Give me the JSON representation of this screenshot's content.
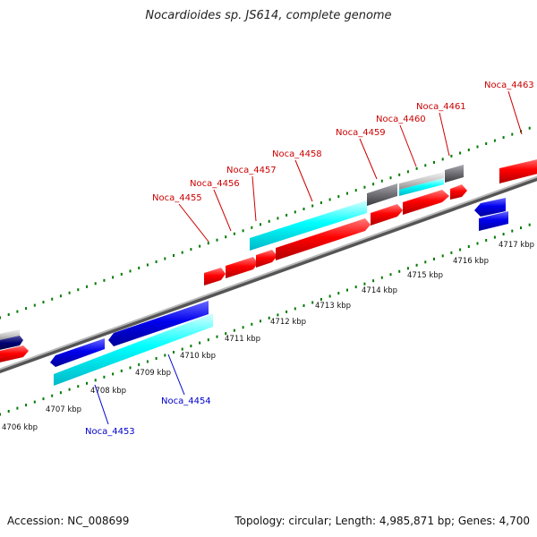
{
  "title": "Nocardioides sp. JS614, complete genome",
  "footer": {
    "accession": "Accession: NC_008699",
    "info": "Topology: circular; Length: 4,985,871 bp; Genes: 4,700"
  },
  "colors": {
    "forward_gene": "#ff0000",
    "reverse_gene": "#0000ee",
    "cds_cyan": "#00ffff",
    "rna_gray": "#6e6e73",
    "light_gray": "#c8c8c8",
    "navy": "#000070",
    "tick_green": "#007a00",
    "forward_label": "#cc0000",
    "reverse_label": "#0000cc"
  },
  "ticks": [
    {
      "label": "4706 kbp"
    },
    {
      "label": "4707 kbp"
    },
    {
      "label": "4708 kbp"
    },
    {
      "label": "4709 kbp"
    },
    {
      "label": "4710 kbp"
    },
    {
      "label": "4711 kbp"
    },
    {
      "label": "4712 kbp"
    },
    {
      "label": "4713 kbp"
    },
    {
      "label": "4714 kbp"
    },
    {
      "label": "4715 kbp"
    },
    {
      "label": "4716 kbp"
    },
    {
      "label": "4717 kbp"
    }
  ],
  "forward_labels": [
    {
      "text": "Noca_4455"
    },
    {
      "text": "Noca_4456"
    },
    {
      "text": "Noca_4457"
    },
    {
      "text": "Noca_4458"
    },
    {
      "text": "Noca_4459"
    },
    {
      "text": "Noca_4460"
    },
    {
      "text": "Noca_4461"
    },
    {
      "text": "Noca_4463"
    }
  ],
  "reverse_labels": [
    {
      "text": "Noca_4453"
    },
    {
      "text": "Noca_4454"
    }
  ]
}
